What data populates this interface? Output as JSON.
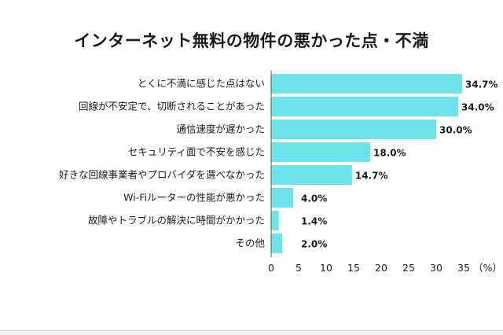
{
  "chart_data": {
    "type": "bar",
    "orientation": "horizontal",
    "title": "インターネット無料の物件の悪かった点・不満",
    "categories": [
      "とくに不満に感じた点はない",
      "回線が不安定で、切断されることがあった",
      "通信速度が遅かった",
      "セキュリティ面で不安を感じた",
      "好きな回線事業者やプロバイダを選べなかった",
      "Wi-Fiルーターの性能が悪かった",
      "故障やトラブルの解決に時間がかかった",
      "その他"
    ],
    "values": [
      34.7,
      34.0,
      30.0,
      18.0,
      14.7,
      4.0,
      1.4,
      2.0
    ],
    "value_labels": [
      "34.7%",
      "34.0%",
      "30.0%",
      "18.0%",
      "14.7%",
      "4.0%",
      "1.4%",
      "2.0%"
    ],
    "xticks": [
      0,
      5,
      10,
      15,
      20,
      25,
      30,
      35
    ],
    "xtick_labels": [
      "0",
      "5",
      "10",
      "15",
      "20",
      "25",
      "30",
      "35"
    ],
    "xunit": "（%）",
    "xlim": [
      0,
      35
    ],
    "bar_color": "#6ee4ea",
    "axis_color": "#555555"
  }
}
